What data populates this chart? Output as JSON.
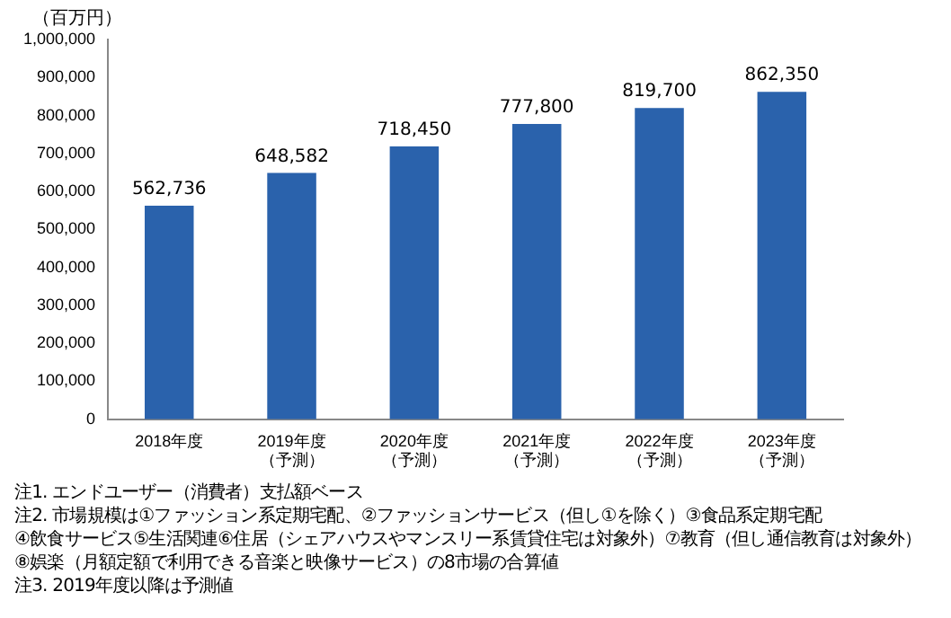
{
  "chart_data": {
    "type": "bar",
    "ylabel": "（百万円）",
    "categories": [
      "2018年度",
      "2019年度（予測）",
      "2020年度（予測）",
      "2021年度（予測）",
      "2022年度（予測）",
      "2023年度（予測）"
    ],
    "values": [
      562736,
      648582,
      718450,
      777800,
      819700,
      862350
    ],
    "color": "#2a62ac",
    "ylim": [
      0,
      1000000
    ],
    "yticks": [
      0,
      {
        "value": 100000,
        "label": "100,000"
      },
      {
        "value": 200000,
        "label": "200,000"
      },
      {
        "value": 300000,
        "label": "300,000"
      },
      {
        "value": 400000,
        "label": "400,000"
      },
      {
        "value": 500000,
        "label": "500,000"
      },
      {
        "value": 600000,
        "label": "600,000"
      },
      {
        "value": 700000,
        "label": "700,000"
      },
      {
        "value": 800000,
        "label": "800,000"
      },
      {
        "value": 900000,
        "label": "900,000"
      },
      {
        "value": 1000000,
        "label": "1,000,000"
      }
    ],
    "grid": false,
    "legend": false,
    "data_labels": true,
    "value_labels": [
      "562,736",
      "648,582",
      "718,450",
      "777,800",
      "819,700",
      "862,350"
    ],
    "annotations": [
      "注1. エンドユーザー（消費者）支払額ベース",
      "注2. 市場規模は①ファッション系定期宅配、②ファッションサービス（但し①を除く）③食品系定期宅配",
      "④飲食サービス⑤生活関連⑥住居（シェアハウスやマンスリー系賃貸住宅は対象外）⑦教育（但し通信教育は対象外）",
      "⑧娯楽（月額定額で利用できる音楽と映像サービス）の8市場の合算値",
      "注3. 2019年度以降は予測値"
    ]
  }
}
